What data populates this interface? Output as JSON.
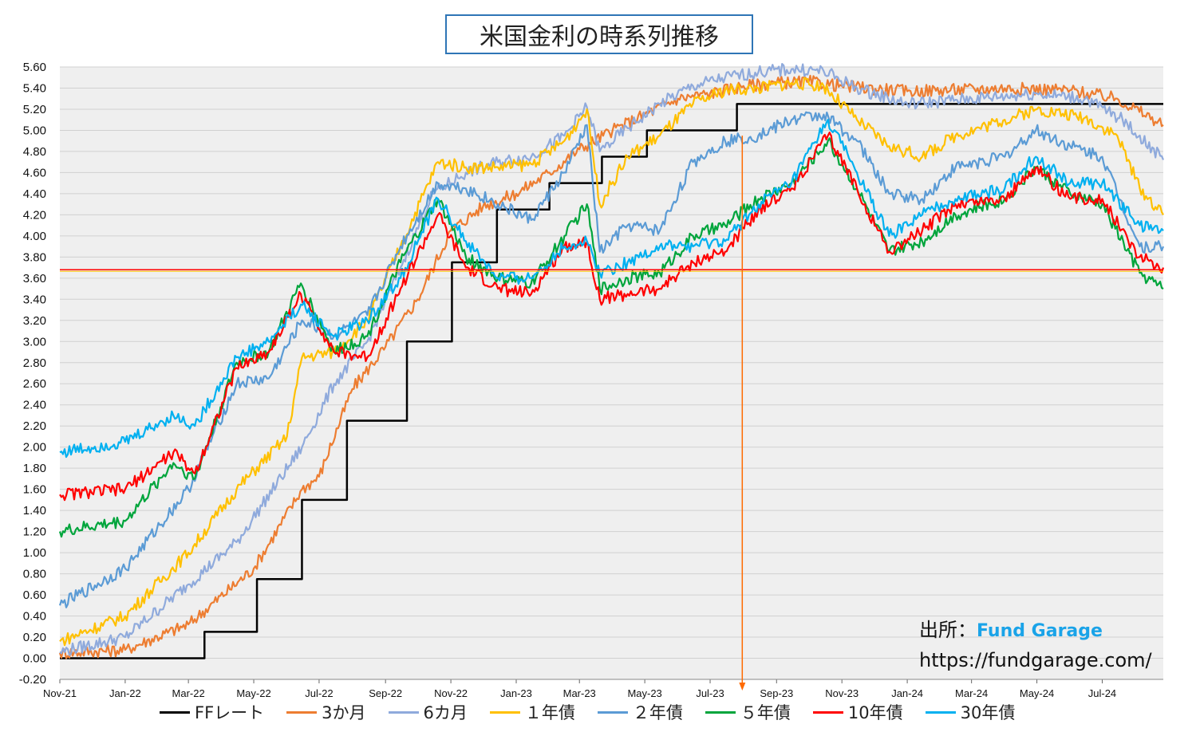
{
  "chart_data": {
    "type": "line",
    "title": "米国金利の時系列推移",
    "x_ticks": [
      "Nov-21",
      "Jan-22",
      "Mar-22",
      "May-22",
      "Jul-22",
      "Sep-22",
      "Nov-22",
      "Jan-23",
      "Mar-23",
      "May-23",
      "Jul-23",
      "Sep-23",
      "Nov-23",
      "Jan-24",
      "Mar-24",
      "May-24",
      "Jul-24"
    ],
    "y_ticks": [
      "5.60",
      "5.40",
      "5.20",
      "5.00",
      "4.80",
      "4.60",
      "4.40",
      "4.20",
      "4.00",
      "3.80",
      "3.60",
      "3.40",
      "3.20",
      "3.00",
      "2.80",
      "2.60",
      "2.40",
      "2.20",
      "2.00",
      "1.80",
      "1.60",
      "1.40",
      "1.20",
      "1.00",
      "0.80",
      "0.60",
      "0.40",
      "0.20",
      "0.00",
      "-0.20"
    ],
    "ylim": [
      -0.2,
      5.6
    ],
    "xlim": [
      "2021-11-01",
      "2024-08-27"
    ],
    "grid": true,
    "legend_position": "bottom",
    "reference_line": {
      "y": 3.68,
      "color": "#ff0000"
    },
    "annotation": {
      "x": "2023-07-31",
      "label": "",
      "color": "#ff6a00"
    },
    "series": [
      {
        "name": "FFレート",
        "color": "#000000",
        "step": true,
        "points": [
          [
            "2021-11-01",
            0.0
          ],
          [
            "2022-03-16",
            0.25
          ],
          [
            "2022-05-04",
            0.75
          ],
          [
            "2022-06-15",
            1.5
          ],
          [
            "2022-07-27",
            2.25
          ],
          [
            "2022-09-21",
            3.0
          ],
          [
            "2022-11-02",
            3.75
          ],
          [
            "2022-12-14",
            4.25
          ],
          [
            "2023-02-01",
            4.5
          ],
          [
            "2023-03-22",
            4.75
          ],
          [
            "2023-05-03",
            5.0
          ],
          [
            "2023-07-26",
            5.25
          ],
          [
            "2024-08-27",
            5.25
          ]
        ]
      },
      {
        "name": "3か月",
        "color": "#ed7d31",
        "points": [
          [
            "2021-11-01",
            0.05
          ],
          [
            "2022-01-01",
            0.08
          ],
          [
            "2022-03-01",
            0.32
          ],
          [
            "2022-05-01",
            0.85
          ],
          [
            "2022-06-15",
            1.6
          ],
          [
            "2022-07-01",
            1.72
          ],
          [
            "2022-08-01",
            2.55
          ],
          [
            "2022-09-01",
            2.95
          ],
          [
            "2022-10-01",
            3.4
          ],
          [
            "2022-11-01",
            4.05
          ],
          [
            "2022-12-01",
            4.28
          ],
          [
            "2023-01-01",
            4.4
          ],
          [
            "2023-02-01",
            4.6
          ],
          [
            "2023-03-01",
            4.82
          ],
          [
            "2023-04-01",
            5.0
          ],
          [
            "2023-05-01",
            5.15
          ],
          [
            "2023-06-01",
            5.3
          ],
          [
            "2023-07-01",
            5.35
          ],
          [
            "2023-08-01",
            5.42
          ],
          [
            "2023-09-01",
            5.45
          ],
          [
            "2023-10-01",
            5.46
          ],
          [
            "2023-11-01",
            5.42
          ],
          [
            "2024-01-01",
            5.37
          ],
          [
            "2024-04-01",
            5.4
          ],
          [
            "2024-06-01",
            5.38
          ],
          [
            "2024-07-15",
            5.3
          ],
          [
            "2024-08-27",
            5.05
          ]
        ]
      },
      {
        "name": "6カ月",
        "color": "#8faadc",
        "points": [
          [
            "2021-11-01",
            0.06
          ],
          [
            "2022-01-01",
            0.2
          ],
          [
            "2022-03-01",
            0.7
          ],
          [
            "2022-04-15",
            1.1
          ],
          [
            "2022-06-15",
            2.0
          ],
          [
            "2022-07-15",
            2.6
          ],
          [
            "2022-08-15",
            3.0
          ],
          [
            "2022-09-15",
            3.7
          ],
          [
            "2022-10-15",
            4.4
          ],
          [
            "2022-11-15",
            4.6
          ],
          [
            "2022-12-15",
            4.7
          ],
          [
            "2023-01-15",
            4.75
          ],
          [
            "2023-02-15",
            4.95
          ],
          [
            "2023-03-08",
            5.22
          ],
          [
            "2023-03-20",
            4.8
          ],
          [
            "2023-04-15",
            5.02
          ],
          [
            "2023-05-15",
            5.25
          ],
          [
            "2023-06-15",
            5.42
          ],
          [
            "2023-07-15",
            5.5
          ],
          [
            "2023-08-15",
            5.55
          ],
          [
            "2023-09-15",
            5.58
          ],
          [
            "2023-10-15",
            5.56
          ],
          [
            "2023-11-15",
            5.4
          ],
          [
            "2024-01-01",
            5.25
          ],
          [
            "2024-03-01",
            5.3
          ],
          [
            "2024-05-01",
            5.35
          ],
          [
            "2024-06-15",
            5.3
          ],
          [
            "2024-07-20",
            5.1
          ],
          [
            "2024-08-27",
            4.72
          ]
        ]
      },
      {
        "name": "１年債",
        "color": "#ffc000",
        "points": [
          [
            "2021-11-01",
            0.16
          ],
          [
            "2022-01-01",
            0.4
          ],
          [
            "2022-03-01",
            1.0
          ],
          [
            "2022-04-15",
            1.6
          ],
          [
            "2022-06-01",
            2.1
          ],
          [
            "2022-06-15",
            2.85
          ],
          [
            "2022-07-15",
            2.9
          ],
          [
            "2022-08-15",
            3.2
          ],
          [
            "2022-09-15",
            3.9
          ],
          [
            "2022-10-20",
            4.7
          ],
          [
            "2022-11-15",
            4.65
          ],
          [
            "2022-12-15",
            4.65
          ],
          [
            "2023-01-15",
            4.68
          ],
          [
            "2023-02-15",
            4.9
          ],
          [
            "2023-03-08",
            5.2
          ],
          [
            "2023-03-20",
            4.3
          ],
          [
            "2023-04-15",
            4.75
          ],
          [
            "2023-05-15",
            4.95
          ],
          [
            "2023-06-15",
            5.25
          ],
          [
            "2023-07-15",
            5.38
          ],
          [
            "2023-08-15",
            5.4
          ],
          [
            "2023-09-15",
            5.45
          ],
          [
            "2023-10-15",
            5.42
          ],
          [
            "2023-11-15",
            5.1
          ],
          [
            "2023-12-15",
            4.85
          ],
          [
            "2024-01-15",
            4.75
          ],
          [
            "2024-02-15",
            4.95
          ],
          [
            "2024-04-01",
            5.1
          ],
          [
            "2024-05-01",
            5.2
          ],
          [
            "2024-06-15",
            5.12
          ],
          [
            "2024-07-15",
            4.95
          ],
          [
            "2024-08-05",
            4.45
          ],
          [
            "2024-08-27",
            4.2
          ]
        ]
      },
      {
        "name": "２年債",
        "color": "#5b9bd5",
        "points": [
          [
            "2021-11-01",
            0.5
          ],
          [
            "2022-01-01",
            0.85
          ],
          [
            "2022-03-01",
            1.6
          ],
          [
            "2022-04-15",
            2.6
          ],
          [
            "2022-05-15",
            2.65
          ],
          [
            "2022-06-15",
            3.2
          ],
          [
            "2022-07-15",
            3.05
          ],
          [
            "2022-08-15",
            3.25
          ],
          [
            "2022-09-15",
            3.9
          ],
          [
            "2022-10-20",
            4.5
          ],
          [
            "2022-11-15",
            4.45
          ],
          [
            "2022-12-15",
            4.3
          ],
          [
            "2023-01-15",
            4.15
          ],
          [
            "2023-02-15",
            4.6
          ],
          [
            "2023-03-08",
            5.05
          ],
          [
            "2023-03-20",
            3.85
          ],
          [
            "2023-04-15",
            4.1
          ],
          [
            "2023-05-15",
            4.05
          ],
          [
            "2023-06-15",
            4.7
          ],
          [
            "2023-07-15",
            4.9
          ],
          [
            "2023-08-15",
            4.95
          ],
          [
            "2023-09-15",
            5.1
          ],
          [
            "2023-10-15",
            5.15
          ],
          [
            "2023-11-15",
            4.9
          ],
          [
            "2023-12-15",
            4.4
          ],
          [
            "2024-01-15",
            4.35
          ],
          [
            "2024-02-15",
            4.65
          ],
          [
            "2024-04-01",
            4.75
          ],
          [
            "2024-04-30",
            5.0
          ],
          [
            "2024-06-01",
            4.85
          ],
          [
            "2024-07-01",
            4.75
          ],
          [
            "2024-08-05",
            3.9
          ],
          [
            "2024-08-27",
            3.9
          ]
        ]
      },
      {
        "name": "５年債",
        "color": "#00a53c",
        "points": [
          [
            "2021-11-01",
            1.2
          ],
          [
            "2022-01-01",
            1.3
          ],
          [
            "2022-02-15",
            1.85
          ],
          [
            "2022-03-07",
            1.7
          ],
          [
            "2022-04-15",
            2.8
          ],
          [
            "2022-05-15",
            2.9
          ],
          [
            "2022-06-14",
            3.55
          ],
          [
            "2022-07-15",
            2.9
          ],
          [
            "2022-08-15",
            3.05
          ],
          [
            "2022-09-15",
            3.75
          ],
          [
            "2022-10-20",
            4.35
          ],
          [
            "2022-11-15",
            3.8
          ],
          [
            "2022-12-15",
            3.6
          ],
          [
            "2023-01-15",
            3.55
          ],
          [
            "2023-02-15",
            4.0
          ],
          [
            "2023-03-08",
            4.3
          ],
          [
            "2023-03-20",
            3.5
          ],
          [
            "2023-04-15",
            3.6
          ],
          [
            "2023-05-15",
            3.65
          ],
          [
            "2023-06-15",
            4.0
          ],
          [
            "2023-07-15",
            4.1
          ],
          [
            "2023-08-15",
            4.35
          ],
          [
            "2023-09-15",
            4.5
          ],
          [
            "2023-10-19",
            4.9
          ],
          [
            "2023-11-15",
            4.45
          ],
          [
            "2023-12-15",
            3.85
          ],
          [
            "2024-01-15",
            3.95
          ],
          [
            "2024-02-15",
            4.2
          ],
          [
            "2024-04-01",
            4.35
          ],
          [
            "2024-04-30",
            4.65
          ],
          [
            "2024-06-01",
            4.4
          ],
          [
            "2024-07-01",
            4.3
          ],
          [
            "2024-08-05",
            3.65
          ],
          [
            "2024-08-27",
            3.5
          ]
        ]
      },
      {
        "name": "10年債",
        "color": "#ff0000",
        "points": [
          [
            "2021-11-01",
            1.55
          ],
          [
            "2022-01-01",
            1.6
          ],
          [
            "2022-02-15",
            1.95
          ],
          [
            "2022-03-07",
            1.75
          ],
          [
            "2022-04-15",
            2.75
          ],
          [
            "2022-05-15",
            2.9
          ],
          [
            "2022-06-14",
            3.45
          ],
          [
            "2022-07-15",
            2.9
          ],
          [
            "2022-08-15",
            2.85
          ],
          [
            "2022-09-15",
            3.5
          ],
          [
            "2022-10-20",
            4.2
          ],
          [
            "2022-11-15",
            3.7
          ],
          [
            "2022-12-15",
            3.5
          ],
          [
            "2023-01-15",
            3.45
          ],
          [
            "2023-02-15",
            3.9
          ],
          [
            "2023-03-08",
            3.95
          ],
          [
            "2023-03-20",
            3.4
          ],
          [
            "2023-04-15",
            3.45
          ],
          [
            "2023-05-15",
            3.5
          ],
          [
            "2023-06-15",
            3.75
          ],
          [
            "2023-07-15",
            3.85
          ],
          [
            "2023-08-15",
            4.25
          ],
          [
            "2023-09-15",
            4.45
          ],
          [
            "2023-10-19",
            4.95
          ],
          [
            "2023-11-15",
            4.45
          ],
          [
            "2023-12-15",
            3.85
          ],
          [
            "2024-01-15",
            4.05
          ],
          [
            "2024-02-15",
            4.3
          ],
          [
            "2024-04-01",
            4.35
          ],
          [
            "2024-04-30",
            4.65
          ],
          [
            "2024-06-01",
            4.35
          ],
          [
            "2024-07-01",
            4.35
          ],
          [
            "2024-08-05",
            3.8
          ],
          [
            "2024-08-27",
            3.7
          ]
        ]
      },
      {
        "name": "30年債",
        "color": "#00b0f0",
        "points": [
          [
            "2021-11-01",
            1.95
          ],
          [
            "2022-01-01",
            2.05
          ],
          [
            "2022-02-15",
            2.3
          ],
          [
            "2022-03-07",
            2.2
          ],
          [
            "2022-04-15",
            2.85
          ],
          [
            "2022-05-15",
            3.0
          ],
          [
            "2022-06-14",
            3.35
          ],
          [
            "2022-07-15",
            3.05
          ],
          [
            "2022-08-15",
            3.2
          ],
          [
            "2022-09-15",
            3.6
          ],
          [
            "2022-10-20",
            4.35
          ],
          [
            "2022-11-15",
            3.95
          ],
          [
            "2022-12-15",
            3.6
          ],
          [
            "2023-01-15",
            3.6
          ],
          [
            "2023-02-15",
            3.9
          ],
          [
            "2023-03-08",
            3.95
          ],
          [
            "2023-03-20",
            3.65
          ],
          [
            "2023-04-15",
            3.75
          ],
          [
            "2023-05-15",
            3.9
          ],
          [
            "2023-06-15",
            3.9
          ],
          [
            "2023-07-15",
            3.95
          ],
          [
            "2023-08-15",
            4.3
          ],
          [
            "2023-09-15",
            4.5
          ],
          [
            "2023-10-19",
            5.1
          ],
          [
            "2023-11-15",
            4.6
          ],
          [
            "2023-12-15",
            4.0
          ],
          [
            "2024-01-15",
            4.2
          ],
          [
            "2024-02-15",
            4.35
          ],
          [
            "2024-04-01",
            4.45
          ],
          [
            "2024-04-30",
            4.75
          ],
          [
            "2024-06-01",
            4.5
          ],
          [
            "2024-07-01",
            4.5
          ],
          [
            "2024-08-05",
            4.1
          ],
          [
            "2024-08-27",
            4.05
          ]
        ]
      }
    ]
  },
  "source": {
    "label": "出所：",
    "brand": "Fund Garage",
    "url": "https://fundgarage.com/"
  }
}
